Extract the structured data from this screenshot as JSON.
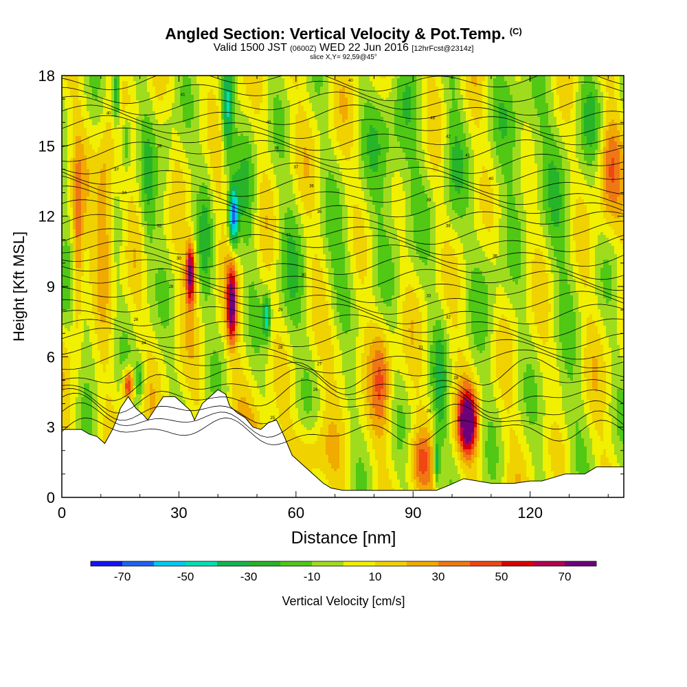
{
  "header": {
    "title": "Angled Section: Vertical Velocity & Pot.Temp.",
    "title_unit": "(C)",
    "valid_prefix": "Valid 1500 JST",
    "valid_utc": "(0600Z)",
    "valid_date": "WED 22 Jun 2016",
    "forecast": "[12hrFcst@2314z]",
    "slice": "slice X,Y= 92,59@45°"
  },
  "chart_data": {
    "type": "heatmap",
    "title": "Angled Section: Vertical Velocity & Pot.Temp. (C)",
    "xlabel": "Distance [nm]",
    "ylabel": "Height [Kft MSL]",
    "xlim": [
      0,
      144
    ],
    "ylim": [
      0,
      18
    ],
    "x_ticks": [
      0,
      30,
      60,
      90,
      120
    ],
    "y_ticks": [
      0,
      3,
      6,
      9,
      12,
      15,
      18
    ],
    "colorbar": {
      "label": "Vertical Velocity [cm/s]",
      "tick_labels": [
        -70,
        -50,
        -30,
        -10,
        10,
        30,
        50,
        70
      ],
      "bounds": [
        -80,
        -70,
        -60,
        -50,
        -40,
        -30,
        -20,
        -10,
        0,
        10,
        20,
        30,
        40,
        50,
        60,
        70,
        80
      ],
      "colors": [
        "#1414f0",
        "#1e64f0",
        "#00c8f0",
        "#00e0b4",
        "#14b450",
        "#28b428",
        "#50c814",
        "#a0dc1e",
        "#f0f000",
        "#f0d200",
        "#f0aa00",
        "#f07814",
        "#f04614",
        "#dc0000",
        "#b40050",
        "#6e007a"
      ]
    },
    "terrain_kft": [
      [
        0,
        2.9
      ],
      [
        5,
        2.9
      ],
      [
        7,
        2.7
      ],
      [
        9,
        2.6
      ],
      [
        11,
        2.3
      ],
      [
        13,
        2.9
      ],
      [
        14,
        3.3
      ],
      [
        15,
        3.8
      ],
      [
        17,
        4.3
      ],
      [
        19,
        3.8
      ],
      [
        21,
        3.5
      ],
      [
        22,
        3.3
      ],
      [
        24,
        3.8
      ],
      [
        26,
        4.3
      ],
      [
        29,
        4.3
      ],
      [
        31,
        4.0
      ],
      [
        33,
        3.7
      ],
      [
        34,
        3.3
      ],
      [
        36,
        4.0
      ],
      [
        38,
        4.3
      ],
      [
        40,
        4.6
      ],
      [
        42,
        4.4
      ],
      [
        43,
        3.9
      ],
      [
        45,
        3.6
      ],
      [
        47,
        3.4
      ],
      [
        49,
        3.0
      ],
      [
        51,
        2.9
      ],
      [
        53,
        3.2
      ],
      [
        55,
        3.3
      ],
      [
        57,
        2.6
      ],
      [
        59,
        1.8
      ],
      [
        61,
        1.5
      ],
      [
        63,
        1.2
      ],
      [
        65,
        0.9
      ],
      [
        67,
        0.6
      ],
      [
        69,
        0.4
      ],
      [
        72,
        0.3
      ],
      [
        76,
        0.3
      ],
      [
        84,
        0.3
      ],
      [
        90,
        0.3
      ],
      [
        96,
        0.3
      ],
      [
        99,
        0.5
      ],
      [
        103,
        0.8
      ],
      [
        110,
        0.6
      ],
      [
        116,
        0.6
      ],
      [
        120,
        0.7
      ],
      [
        123,
        0.7
      ],
      [
        127,
        0.9
      ],
      [
        129,
        1.0
      ],
      [
        134,
        1.0
      ],
      [
        137,
        1.3
      ],
      [
        144,
        1.3
      ]
    ],
    "theta_labels": [
      {
        "x": 31,
        "y": 17.2,
        "text": "41"
      },
      {
        "x": 12,
        "y": 16.4,
        "text": "40"
      },
      {
        "x": 25,
        "y": 15.0,
        "text": "39"
      },
      {
        "x": 14,
        "y": 14.0,
        "text": "37"
      },
      {
        "x": 16,
        "y": 13.0,
        "text": "34"
      },
      {
        "x": 25,
        "y": 11.6,
        "text": "32"
      },
      {
        "x": 30,
        "y": 10.2,
        "text": "30"
      },
      {
        "x": 28,
        "y": 9.0,
        "text": "28"
      },
      {
        "x": 19,
        "y": 7.6,
        "text": "26"
      },
      {
        "x": 21,
        "y": 6.6,
        "text": "24"
      },
      {
        "x": 53,
        "y": 16.0,
        "text": "40"
      },
      {
        "x": 55,
        "y": 14.9,
        "text": "38"
      },
      {
        "x": 60,
        "y": 14.1,
        "text": "37"
      },
      {
        "x": 64,
        "y": 13.3,
        "text": "36"
      },
      {
        "x": 66,
        "y": 12.2,
        "text": "35"
      },
      {
        "x": 58,
        "y": 11.2,
        "text": "33"
      },
      {
        "x": 62,
        "y": 9.5,
        "text": "30"
      },
      {
        "x": 56,
        "y": 8.0,
        "text": "29"
      },
      {
        "x": 56,
        "y": 6.4,
        "text": "28"
      },
      {
        "x": 66,
        "y": 5.7,
        "text": "27"
      },
      {
        "x": 65,
        "y": 4.6,
        "text": "26"
      },
      {
        "x": 54,
        "y": 3.4,
        "text": "25"
      },
      {
        "x": 74,
        "y": 17.8,
        "text": "40"
      },
      {
        "x": 95,
        "y": 16.2,
        "text": "43"
      },
      {
        "x": 99,
        "y": 15.4,
        "text": "42"
      },
      {
        "x": 104,
        "y": 14.6,
        "text": "41"
      },
      {
        "x": 110,
        "y": 13.6,
        "text": "40"
      },
      {
        "x": 94,
        "y": 12.7,
        "text": "39"
      },
      {
        "x": 99,
        "y": 11.6,
        "text": "38"
      },
      {
        "x": 111,
        "y": 10.3,
        "text": "36"
      },
      {
        "x": 94,
        "y": 8.6,
        "text": "33"
      },
      {
        "x": 99,
        "y": 7.7,
        "text": "32"
      },
      {
        "x": 92,
        "y": 6.4,
        "text": "31"
      },
      {
        "x": 101,
        "y": 5.1,
        "text": "29"
      },
      {
        "x": 94,
        "y": 3.7,
        "text": "26"
      }
    ]
  }
}
